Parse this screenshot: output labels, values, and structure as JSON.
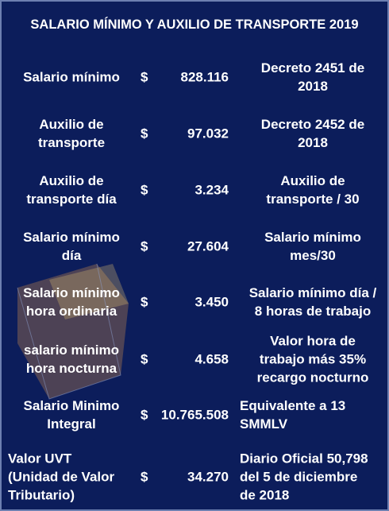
{
  "header": {
    "title": "SALARIO MÍNIMO Y AUXILIO DE TRANSPORTE 2019"
  },
  "table": {
    "rows": [
      [
        "Salario mínimo",
        "$",
        "828.116",
        "Decreto 2451 de\n2018"
      ],
      [
        "Auxilio de\ntransporte",
        "$",
        "97.032",
        "Decreto 2452 de\n2018"
      ],
      [
        "Auxilio de\ntransporte día",
        "$",
        "3.234",
        "Auxilio de\ntransporte / 30"
      ],
      [
        "Salario mínimo\ndía",
        "$",
        "27.604",
        "Salario mínimo\nmes/30"
      ],
      [
        "Salario mínimo\nhora ordinaria",
        "$",
        "3.450",
        "Salario mínimo día /\n8 horas de trabajo"
      ],
      [
        "salario mínimo\nhora nocturna",
        "$",
        "4.658",
        "Valor hora de\ntrabajo más 35%\nrecargo nocturno"
      ],
      [
        "Salario Minimo\nIntegral",
        "$",
        "10.765.508",
        "Equivalente a 13\nSMMLV"
      ],
      [
        "Valor UVT\n(Unidad de Valor\nTributario)",
        "$",
        "34.270",
        "Diario Oficial 50,798\ndel 5 de diciembre\nde 2018"
      ]
    ]
  }
}
